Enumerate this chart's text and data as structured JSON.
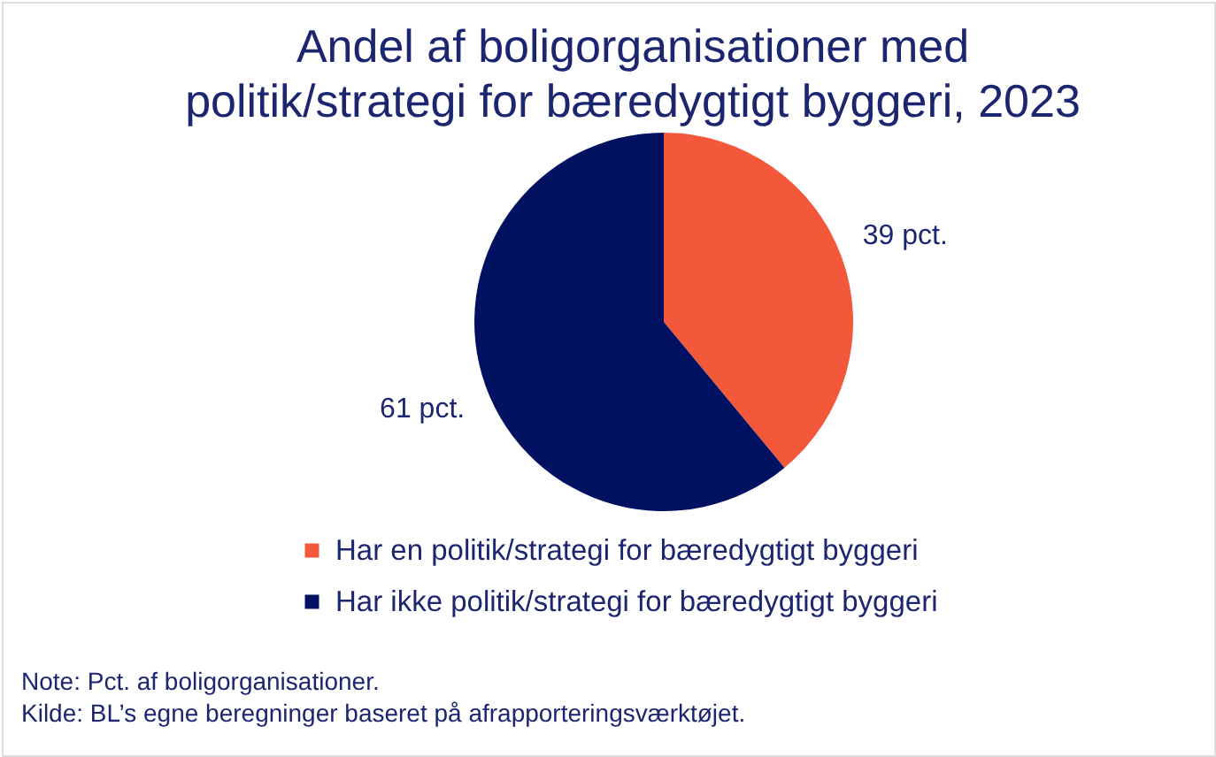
{
  "chart_data": {
    "type": "pie",
    "title": "Andel af boligorganisationer med politik/strategi for bæredygtigt byggeri, 2023",
    "categories": [
      "Har en politik/strategi for bæredygtigt byggeri",
      "Har ikke politik/strategi for bæredygtigt byggeri"
    ],
    "values": [
      39,
      61
    ],
    "colors": [
      "#f4583a",
      "#001161"
    ],
    "value_labels": [
      "39 pct.",
      "61 pct."
    ],
    "legend": "bottom",
    "annotations": [
      "Note: Pct. af boligorganisationer.",
      "Kilde: BL’s egne beregninger baseret på afrapporteringsværktøjet."
    ]
  }
}
